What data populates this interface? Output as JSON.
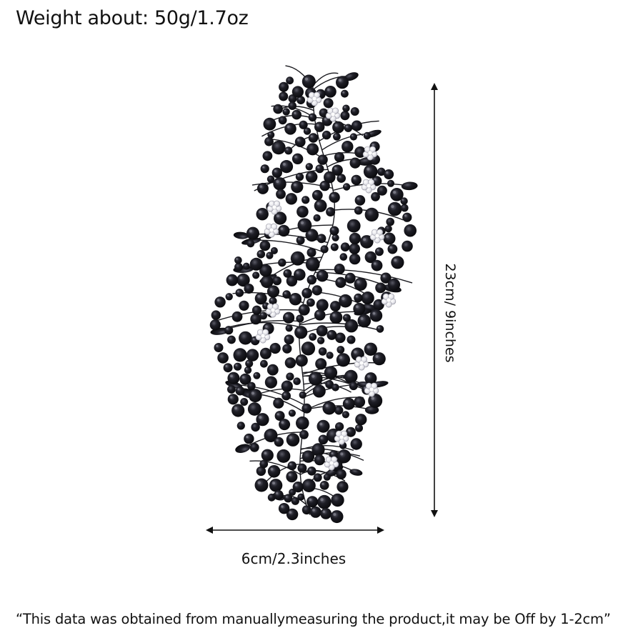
{
  "header": {
    "weight_text": "Weight about: 50g/1.7oz"
  },
  "dimensions": {
    "height_text": "23cm/ 9inches",
    "width_text": "6cm/2.3inches"
  },
  "footer": {
    "disclaimer_text": "“This data was obtained from manuallymeasuring the product,it may be Off by 1-2cm”"
  },
  "product": {
    "icon": "floral-hair-vine-image",
    "stone_color": "#15151b",
    "accent_color": "#e8e8ee"
  }
}
